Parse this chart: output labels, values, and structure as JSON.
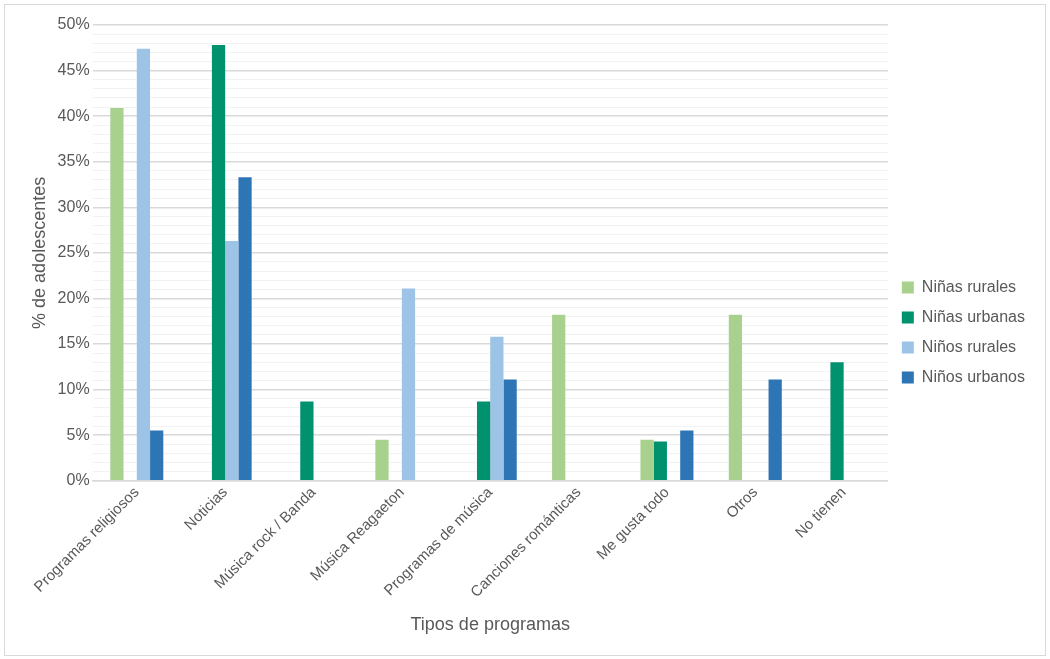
{
  "chart_data": {
    "type": "bar",
    "xlabel": "Tipos de programas",
    "ylabel": "% de adolescentes",
    "categories": [
      "Programas religiosos",
      "Noticias",
      "Música rock / Banda",
      "Música Reagaeton",
      "Programas de música",
      "Canciones románticas",
      "Me gusta todo",
      "Otros",
      "No tienen"
    ],
    "series": [
      {
        "name": "Niñas rurales",
        "color": "#a9d18e",
        "values": [
          40.9,
          0,
          0,
          4.5,
          0,
          18.2,
          4.5,
          18.2,
          0
        ]
      },
      {
        "name": "Niñas urbanas",
        "color": "#00916e",
        "values": [
          0,
          47.8,
          8.7,
          0,
          8.7,
          0,
          4.3,
          0,
          13.0
        ]
      },
      {
        "name": "Niños rurales",
        "color": "#9dc3e6",
        "values": [
          47.4,
          26.3,
          0,
          21.1,
          15.8,
          0,
          0,
          0,
          0
        ]
      },
      {
        "name": "Niños urbanos",
        "color": "#2e75b6",
        "values": [
          5.5,
          33.3,
          0,
          0,
          11.1,
          0,
          5.5,
          11.1,
          0
        ]
      }
    ],
    "ylim": [
      0,
      50
    ],
    "yticks": [
      {
        "value": 0,
        "label": "0%"
      },
      {
        "value": 1,
        "label": null
      },
      {
        "value": 2,
        "label": null
      },
      {
        "value": 3,
        "label": null
      },
      {
        "value": 4,
        "label": null
      },
      {
        "value": 5,
        "label": "5%"
      },
      {
        "value": 6,
        "label": null
      },
      {
        "value": 7,
        "label": null
      },
      {
        "value": 8,
        "label": null
      },
      {
        "value": 9,
        "label": null
      },
      {
        "value": 10,
        "label": "10%"
      },
      {
        "value": 11,
        "label": null
      },
      {
        "value": 12,
        "label": null
      },
      {
        "value": 13,
        "label": null
      },
      {
        "value": 14,
        "label": null
      },
      {
        "value": 15,
        "label": "15%"
      },
      {
        "value": 16,
        "label": null
      },
      {
        "value": 17,
        "label": null
      },
      {
        "value": 18,
        "label": null
      },
      {
        "value": 19,
        "label": null
      },
      {
        "value": 20,
        "label": "20%"
      },
      {
        "value": 21,
        "label": null
      },
      {
        "value": 22,
        "label": null
      },
      {
        "value": 23,
        "label": null
      },
      {
        "value": 24,
        "label": null
      },
      {
        "value": 25,
        "label": "25%"
      },
      {
        "value": 26,
        "label": null
      },
      {
        "value": 27,
        "label": null
      },
      {
        "value": 28,
        "label": null
      },
      {
        "value": 29,
        "label": null
      },
      {
        "value": 30,
        "label": "30%"
      },
      {
        "value": 31,
        "label": null
      },
      {
        "value": 32,
        "label": null
      },
      {
        "value": 33,
        "label": null
      },
      {
        "value": 34,
        "label": null
      },
      {
        "value": 35,
        "label": "35%"
      },
      {
        "value": 36,
        "label": null
      },
      {
        "value": 37,
        "label": null
      },
      {
        "value": 38,
        "label": null
      },
      {
        "value": 39,
        "label": null
      },
      {
        "value": 40,
        "label": "40%"
      },
      {
        "value": 41,
        "label": null
      },
      {
        "value": 42,
        "label": null
      },
      {
        "value": 43,
        "label": null
      },
      {
        "value": 44,
        "label": null
      },
      {
        "value": 45,
        "label": "45%"
      },
      {
        "value": 46,
        "label": null
      },
      {
        "value": 47,
        "label": null
      },
      {
        "value": 48,
        "label": null
      },
      {
        "value": 49,
        "label": null
      },
      {
        "value": 50,
        "label": "50%"
      }
    ],
    "grid": "y",
    "legend": "right"
  }
}
